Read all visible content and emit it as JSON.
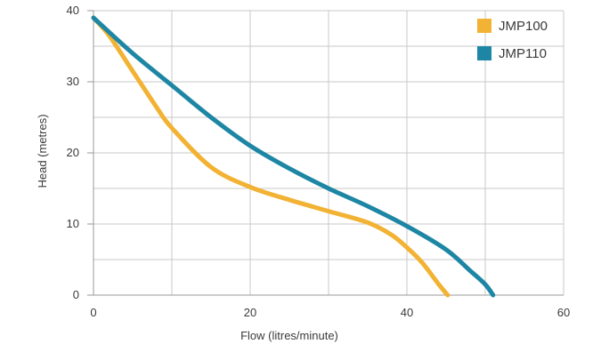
{
  "chart_data": {
    "type": "line",
    "xlabel": "Flow (litres/minute)",
    "ylabel": "Head (metres)",
    "xlim": [
      0,
      60
    ],
    "ylim": [
      0,
      40
    ],
    "x_ticks": [
      0,
      20,
      40,
      60
    ],
    "y_ticks": [
      0,
      10,
      20,
      30,
      40
    ],
    "x_tick_labels": [
      "0",
      "20",
      "40",
      "60"
    ],
    "y_tick_labels": [
      "0",
      "10",
      "20",
      "30",
      "40"
    ],
    "grid": true,
    "legend_position": "top-right",
    "series": [
      {
        "name": "JMP100",
        "color": "#F2B233",
        "x": [
          0,
          2,
          5,
          8,
          10,
          15,
          20,
          25,
          30,
          35,
          38,
          40,
          42,
          44,
          45.2
        ],
        "y": [
          39,
          36.5,
          31.5,
          26.5,
          23.5,
          18,
          15.2,
          13.4,
          11.8,
          10.2,
          8.5,
          6.7,
          4.5,
          1.6,
          0
        ]
      },
      {
        "name": "JMP110",
        "color": "#1D86A5",
        "x": [
          0,
          5,
          10,
          15,
          20,
          25,
          30,
          35,
          40,
          45,
          48,
          50,
          51
        ],
        "y": [
          39,
          34,
          29.5,
          25,
          21,
          17.8,
          15,
          12.5,
          9.7,
          6.4,
          3.5,
          1.5,
          0
        ]
      }
    ]
  }
}
